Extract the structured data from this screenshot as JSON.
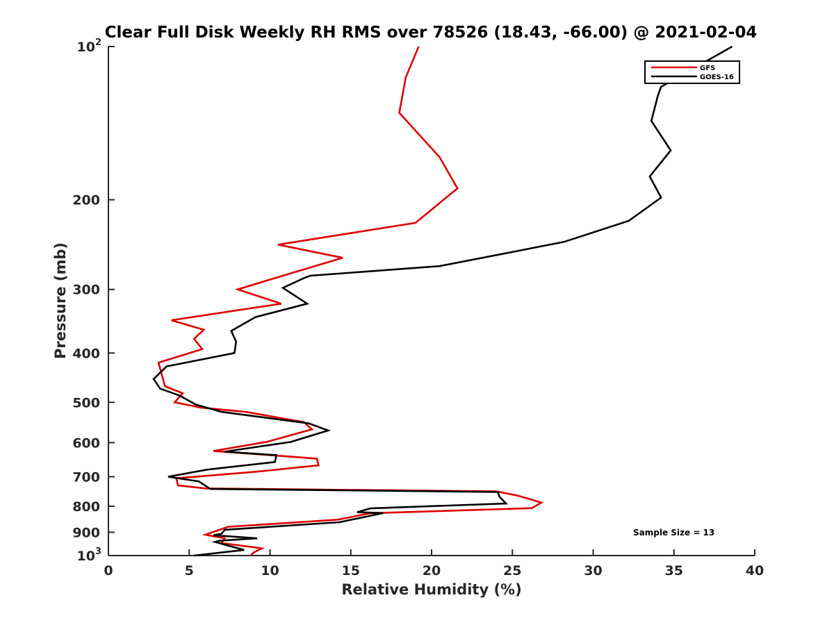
{
  "chart_data": {
    "type": "line",
    "title": "Clear Full Disk Weekly RH RMS over 78526 (18.43, -66.00) @ 2021-02-04",
    "xlabel": "Relative Humidity (%)",
    "ylabel": "Pressure (mb)",
    "xlim": [
      0,
      40
    ],
    "ylim": [
      100,
      1000
    ],
    "y_scale": "log",
    "y_reversed": true,
    "x_ticks": [
      0,
      5,
      10,
      15,
      20,
      25,
      30,
      35,
      40
    ],
    "y_ticks": [
      {
        "value": 100,
        "label": "10",
        "sup": "2"
      },
      {
        "value": 200,
        "label": "200",
        "sup": ""
      },
      {
        "value": 300,
        "label": "300",
        "sup": ""
      },
      {
        "value": 400,
        "label": "400",
        "sup": ""
      },
      {
        "value": 500,
        "label": "500",
        "sup": ""
      },
      {
        "value": 600,
        "label": "600",
        "sup": ""
      },
      {
        "value": 700,
        "label": "700",
        "sup": ""
      },
      {
        "value": 800,
        "label": "800",
        "sup": ""
      },
      {
        "value": 900,
        "label": "900",
        "sup": ""
      },
      {
        "value": 1000,
        "label": "10",
        "sup": "3"
      }
    ],
    "grid": false,
    "legend_position": "top-right",
    "annotation": "Sample Size = 13",
    "series": [
      {
        "name": "GFS",
        "color": "#dd0000",
        "points": [
          [
            19.2,
            100
          ],
          [
            18.4,
            115
          ],
          [
            18.0,
            135
          ],
          [
            20.5,
            165
          ],
          [
            21.6,
            190
          ],
          [
            19.0,
            222
          ],
          [
            10.5,
            245
          ],
          [
            14.5,
            260
          ],
          [
            10.8,
            282
          ],
          [
            8.0,
            300
          ],
          [
            10.7,
            320
          ],
          [
            3.9,
            345
          ],
          [
            5.9,
            360
          ],
          [
            5.3,
            375
          ],
          [
            5.8,
            393
          ],
          [
            3.1,
            418
          ],
          [
            3.5,
            465
          ],
          [
            4.6,
            480
          ],
          [
            4.1,
            500
          ],
          [
            5.7,
            512
          ],
          [
            8.5,
            522
          ],
          [
            12.1,
            547
          ],
          [
            12.6,
            565
          ],
          [
            9.8,
            598
          ],
          [
            6.5,
            623
          ],
          [
            12.9,
            645
          ],
          [
            13.0,
            665
          ],
          [
            9.0,
            685
          ],
          [
            4.2,
            705
          ],
          [
            4.3,
            728
          ],
          [
            6.0,
            738
          ],
          [
            24.0,
            748
          ],
          [
            25.3,
            762
          ],
          [
            26.8,
            787
          ],
          [
            26.2,
            807
          ],
          [
            16.2,
            826
          ],
          [
            14.2,
            850
          ],
          [
            7.4,
            878
          ],
          [
            6.0,
            910
          ],
          [
            7.2,
            925
          ],
          [
            7.0,
            945
          ],
          [
            9.5,
            968
          ],
          [
            9.0,
            986
          ],
          [
            8.8,
            1000
          ]
        ]
      },
      {
        "name": "GOES-16",
        "color": "#000000",
        "points": [
          [
            38.6,
            100
          ],
          [
            34.2,
            120
          ],
          [
            34.0,
            125
          ],
          [
            33.6,
            140
          ],
          [
            34.8,
            160
          ],
          [
            33.5,
            180
          ],
          [
            34.2,
            198
          ],
          [
            32.2,
            220
          ],
          [
            28.2,
            242
          ],
          [
            20.5,
            270
          ],
          [
            12.5,
            282
          ],
          [
            12.1,
            285
          ],
          [
            10.8,
            298
          ],
          [
            12.3,
            320
          ],
          [
            9.1,
            340
          ],
          [
            7.6,
            362
          ],
          [
            7.9,
            380
          ],
          [
            7.8,
            400
          ],
          [
            3.6,
            425
          ],
          [
            2.8,
            450
          ],
          [
            3.2,
            470
          ],
          [
            4.4,
            485
          ],
          [
            5.4,
            505
          ],
          [
            7.0,
            522
          ],
          [
            12.4,
            550
          ],
          [
            13.6,
            568
          ],
          [
            11.3,
            598
          ],
          [
            7.2,
            625
          ],
          [
            10.4,
            635
          ],
          [
            10.3,
            655
          ],
          [
            6.1,
            678
          ],
          [
            3.7,
            700
          ],
          [
            5.6,
            715
          ],
          [
            6.3,
            740
          ],
          [
            24.1,
            750
          ],
          [
            24.2,
            766
          ],
          [
            24.6,
            790
          ],
          [
            16.2,
            808
          ],
          [
            15.4,
            822
          ],
          [
            17.0,
            825
          ],
          [
            14.3,
            860
          ],
          [
            7.2,
            890
          ],
          [
            7.0,
            906
          ],
          [
            6.5,
            912
          ],
          [
            9.2,
            925
          ],
          [
            6.9,
            935
          ],
          [
            6.6,
            940
          ],
          [
            7.3,
            954
          ],
          [
            8.4,
            975
          ],
          [
            5.3,
            1000
          ]
        ]
      }
    ]
  }
}
